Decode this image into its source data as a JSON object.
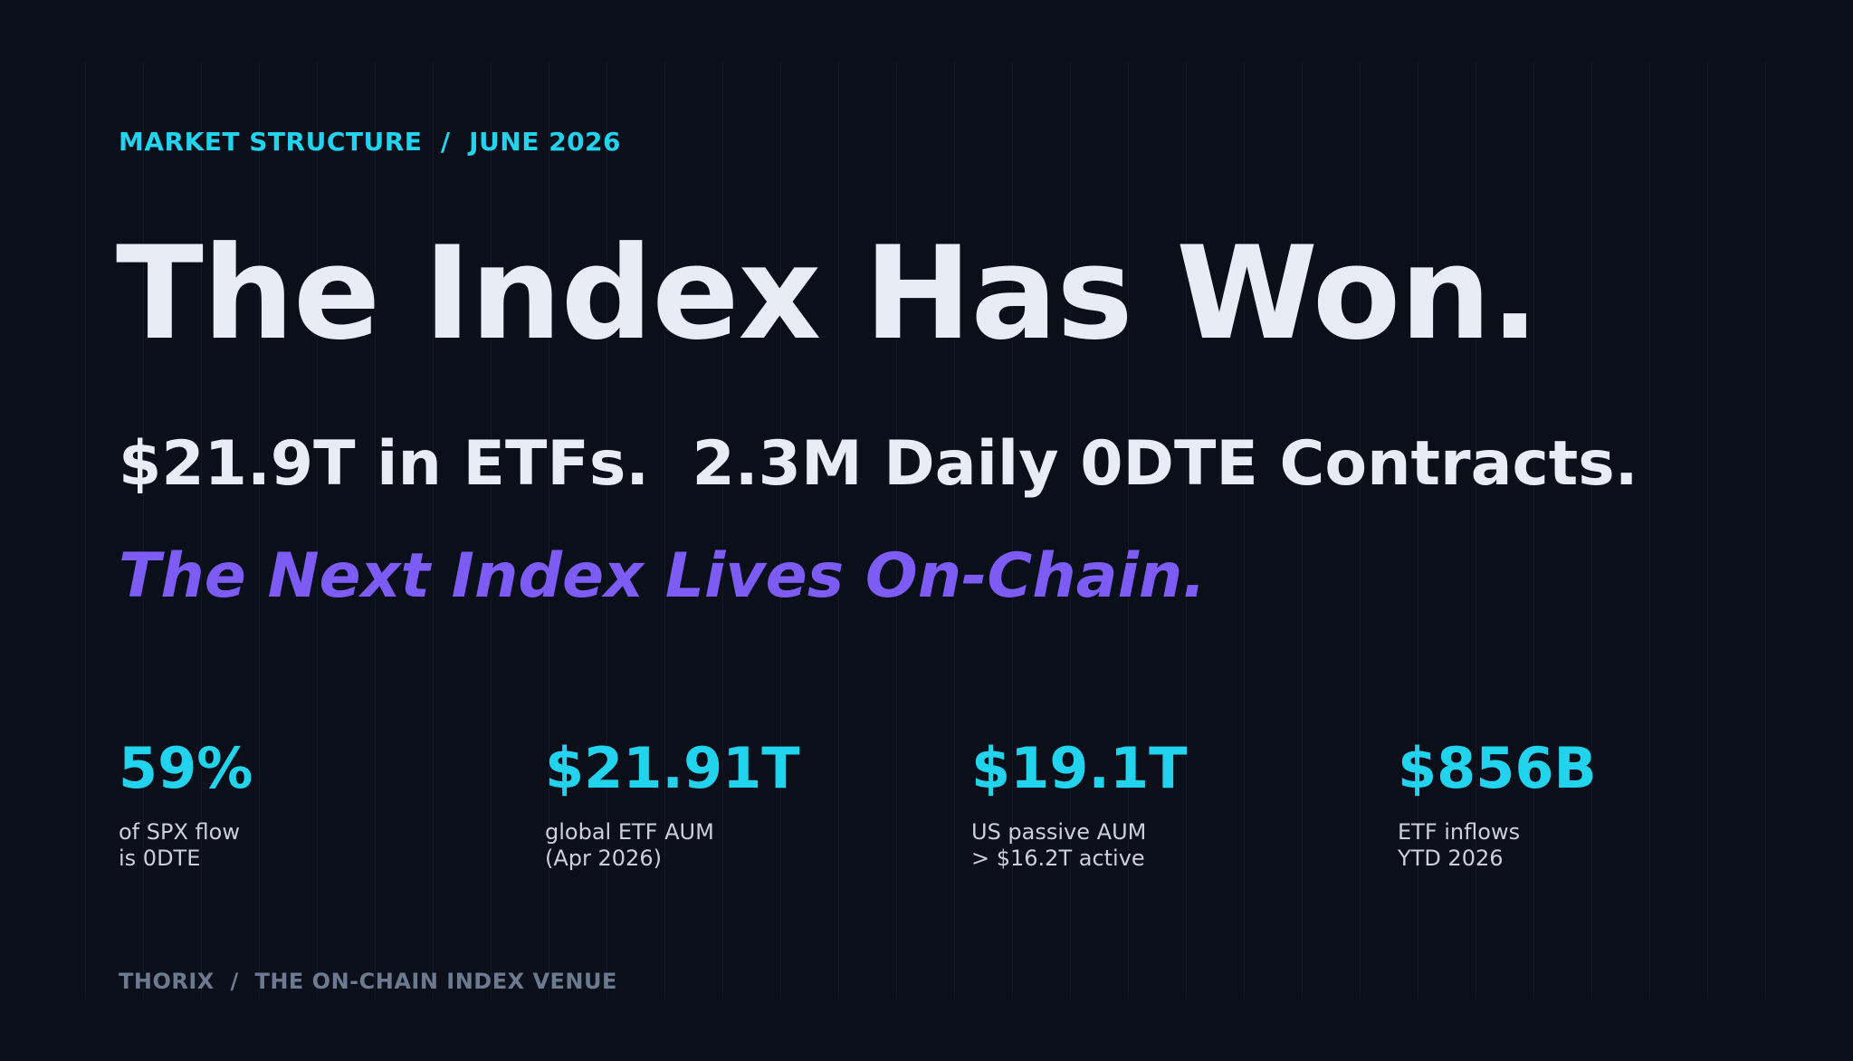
{
  "header": {
    "eyebrow": "MARKET STRUCTURE  /  JUNE 2026",
    "title": "The Index Has Won.",
    "subtitle": "$21.9T in ETFs.  2.3M Daily 0DTE Contracts.",
    "tagline": "The Next Index Lives On-Chain."
  },
  "stats": [
    {
      "value": "59%",
      "label": [
        "of SPX flow",
        "is 0DTE"
      ]
    },
    {
      "value": "$21.91T",
      "label": [
        "global ETF AUM",
        "(Apr 2026)"
      ]
    },
    {
      "value": "$19.1T",
      "label": [
        "US passive AUM",
        "> $16.2T active"
      ]
    },
    {
      "value": "$856B",
      "label": [
        "ETF inflows",
        "YTD 2026"
      ]
    }
  ],
  "footer": "THORIX  /  THE ON-CHAIN INDEX VENUE"
}
